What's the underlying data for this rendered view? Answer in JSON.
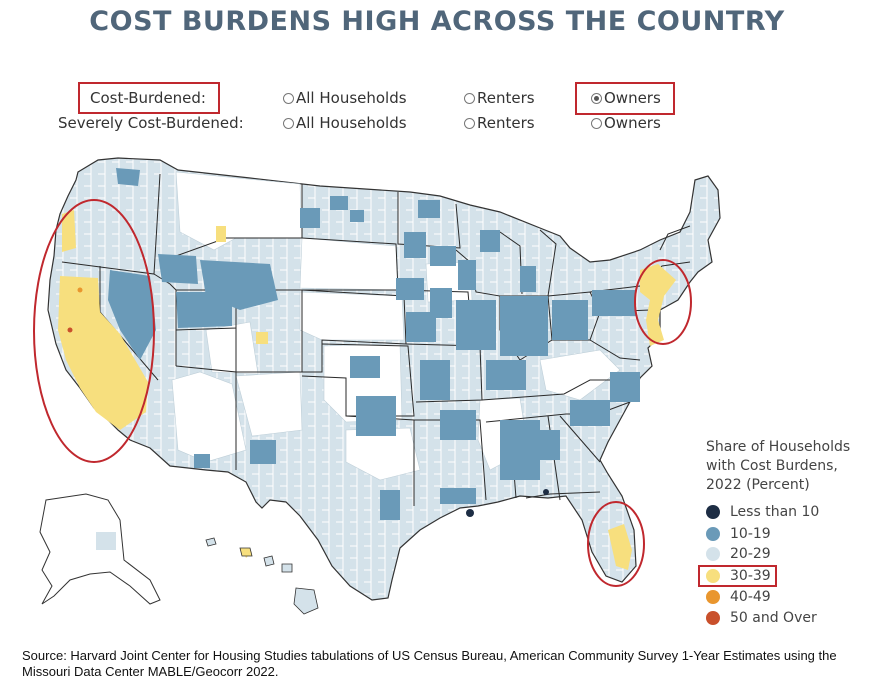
{
  "title": "COST BURDENS HIGH ACROSS THE COUNTRY",
  "colors": {
    "title": "#50667a",
    "less_than_10": "#1d2d44",
    "10_19": "#6a9ab8",
    "20_29": "#d4e2ea",
    "30_39": "#f7df7e",
    "40_49": "#e9962e",
    "50_over": "#c9502b",
    "annotation_red": "#c0282e",
    "border": "#222222"
  },
  "controls": {
    "cost_burdened_label": "Cost-Burdened:",
    "severely_label": "Severely Cost-Burdened:",
    "rows": [
      {
        "options": [
          {
            "label": "All Households",
            "selected": false
          },
          {
            "label": "Renters",
            "selected": false
          },
          {
            "label": "Owners",
            "selected": true
          }
        ]
      },
      {
        "options": [
          {
            "label": "All Households",
            "selected": false
          },
          {
            "label": "Renters",
            "selected": false
          },
          {
            "label": "Owners",
            "selected": false
          }
        ]
      }
    ]
  },
  "legend": {
    "title_lines": [
      "Share of Households",
      "with Cost Burdens,",
      "2022 (Percent)"
    ],
    "items": [
      {
        "label": "Less than 10",
        "color": "#1d2d44"
      },
      {
        "label": "10-19",
        "color": "#6a9ab8"
      },
      {
        "label": "20-29",
        "color": "#d4e2ea"
      },
      {
        "label": "30-39",
        "color": "#f7df7e"
      },
      {
        "label": "40-49",
        "color": "#e9962e"
      },
      {
        "label": "50 and Over",
        "color": "#c9502b"
      }
    ]
  },
  "source": "Source: Harvard Joint Center for Housing Studies tabulations of US Census Bureau, American Community Survey 1-Year Estimates using the Missouri Data Center MABLE/Geocorr 2022."
}
